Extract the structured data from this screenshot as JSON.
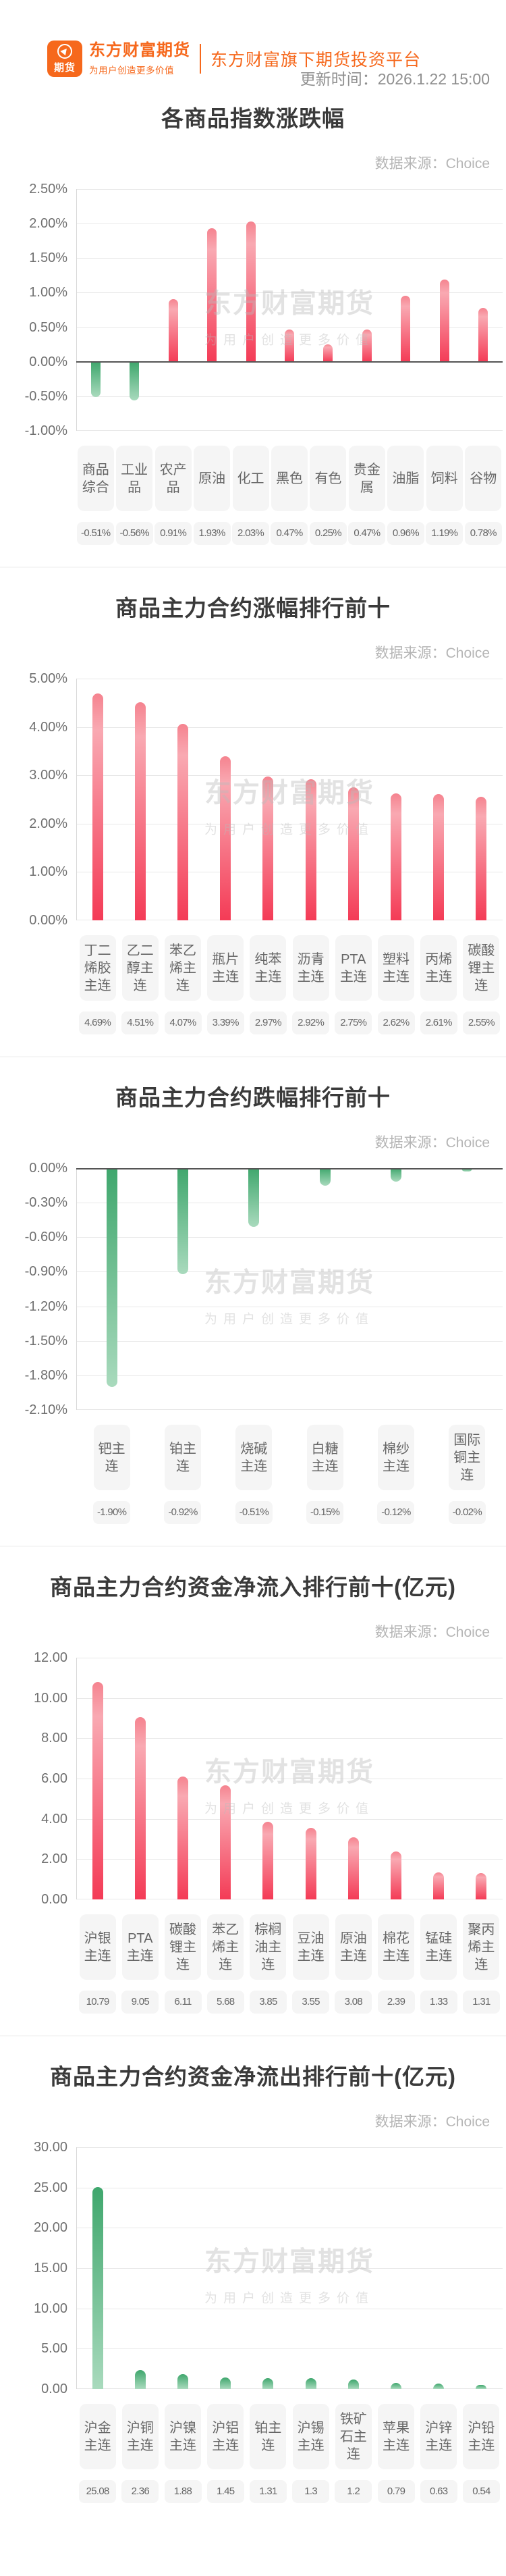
{
  "header": {
    "logo_badge": "期货",
    "brand": "东方财富期货",
    "brand_slogan": "为用户创造更多价值",
    "platform_tagline": "东方财富旗下期货投资平台",
    "update_time": "更新时间：2026.1.22 15:00"
  },
  "watermark": {
    "line1": "东方财富期货",
    "line2": "为用户创造更多价值"
  },
  "colors": {
    "brand_orange": "#f6681c",
    "up_red": "#f43b56",
    "down_green": "#41a76e",
    "chip_background": "#f5f5f5"
  },
  "chart_data": [
    {
      "type": "bar",
      "title": "各商品指数涨跌幅",
      "source": "数据来源：Choice",
      "categories": [
        "商品综合",
        "工业品",
        "农产品",
        "原油",
        "化工",
        "黑色",
        "有色",
        "贵金属",
        "油脂",
        "饲料",
        "谷物"
      ],
      "values": [
        -0.51,
        -0.56,
        0.91,
        1.93,
        2.03,
        0.47,
        0.25,
        0.47,
        0.96,
        1.19,
        0.78
      ],
      "value_labels": [
        "-0.51%",
        "-0.56%",
        "0.91%",
        "1.93%",
        "2.03%",
        "0.47%",
        "0.25%",
        "0.47%",
        "0.96%",
        "1.19%",
        "0.78%"
      ],
      "yticks": [
        "2.50%",
        "2.00%",
        "1.50%",
        "1.00%",
        "0.50%",
        "0.00%",
        "-0.50%",
        "-1.00%"
      ],
      "ymax": 2.5,
      "ymin": -1.0,
      "bar_palette": "red",
      "grid": true,
      "legend": false
    },
    {
      "type": "bar",
      "title": "商品主力合约涨幅排行前十",
      "source": "数据来源：Choice",
      "categories": [
        "丁二烯胶主连",
        "乙二醇主连",
        "苯乙烯主连",
        "瓶片主连",
        "纯苯主连",
        "沥青主连",
        "PTA主连",
        "塑料主连",
        "丙烯主连",
        "碳酸锂主连"
      ],
      "values": [
        4.69,
        4.51,
        4.07,
        3.39,
        2.97,
        2.92,
        2.75,
        2.62,
        2.61,
        2.55
      ],
      "value_labels": [
        "4.69%",
        "4.51%",
        "4.07%",
        "3.39%",
        "2.97%",
        "2.92%",
        "2.75%",
        "2.62%",
        "2.61%",
        "2.55%"
      ],
      "yticks": [
        "5.00%",
        "4.00%",
        "3.00%",
        "2.00%",
        "1.00%",
        "0.00%"
      ],
      "ymax": 5,
      "ymin": 0,
      "bar_palette": "red",
      "grid": true,
      "legend": false
    },
    {
      "type": "bar",
      "title": "商品主力合约跌幅排行前十",
      "source": "数据来源：Choice",
      "categories": [
        "钯主连",
        "铂主连",
        "烧碱主连",
        "白糖主连",
        "棉纱主连",
        "国际铜主连"
      ],
      "values": [
        -1.9,
        -0.92,
        -0.51,
        -0.15,
        -0.12,
        -0.02
      ],
      "value_labels": [
        "-1.90%",
        "-0.92%",
        "-0.51%",
        "-0.15%",
        "-0.12%",
        "-0.02%"
      ],
      "yticks": [
        "0.00%",
        "-0.30%",
        "-0.60%",
        "-0.90%",
        "-1.20%",
        "-1.50%",
        "-1.80%",
        "-2.10%"
      ],
      "ymax": 0,
      "ymin": -2.1,
      "bar_palette": "red",
      "grid": true,
      "legend": false
    },
    {
      "type": "bar",
      "title": "商品主力合约资金净流入排行前十(亿元)",
      "source": "数据来源：Choice",
      "categories": [
        "沪银主连",
        "PTA主连",
        "碳酸锂主连",
        "苯乙烯主连",
        "棕榈油主连",
        "豆油主连",
        "原油主连",
        "棉花主连",
        "锰硅主连",
        "聚丙烯主连"
      ],
      "values": [
        10.79,
        9.05,
        6.11,
        5.68,
        3.85,
        3.55,
        3.08,
        2.39,
        1.33,
        1.31
      ],
      "value_labels": [
        "10.79",
        "9.05",
        "6.11",
        "5.68",
        "3.85",
        "3.55",
        "3.08",
        "2.39",
        "1.33",
        "1.31"
      ],
      "yticks": [
        "12.00",
        "10.00",
        "8.00",
        "6.00",
        "4.00",
        "2.00",
        "0.00"
      ],
      "ymax": 12,
      "ymin": 0,
      "bar_palette": "red",
      "grid": true,
      "legend": false
    },
    {
      "type": "bar",
      "title": "商品主力合约资金净流出排行前十(亿元)",
      "source": "数据来源：Choice",
      "categories": [
        "沪金主连",
        "沪铜主连",
        "沪镍主连",
        "沪铝主连",
        "铂主连",
        "沪锡主连",
        "铁矿石主连",
        "苹果主连",
        "沪锌主连",
        "沪铅主连"
      ],
      "values": [
        25.08,
        2.36,
        1.88,
        1.45,
        1.31,
        1.3,
        1.2,
        0.79,
        0.63,
        0.54
      ],
      "value_labels": [
        "25.08",
        "2.36",
        "1.88",
        "1.45",
        "1.31",
        "1.3",
        "1.2",
        "0.79",
        "0.63",
        "0.54"
      ],
      "yticks": [
        "30.00",
        "25.00",
        "20.00",
        "15.00",
        "10.00",
        "5.00",
        "0.00"
      ],
      "ymax": 30,
      "ymin": 0,
      "bar_palette": "green",
      "grid": true,
      "legend": false
    }
  ]
}
